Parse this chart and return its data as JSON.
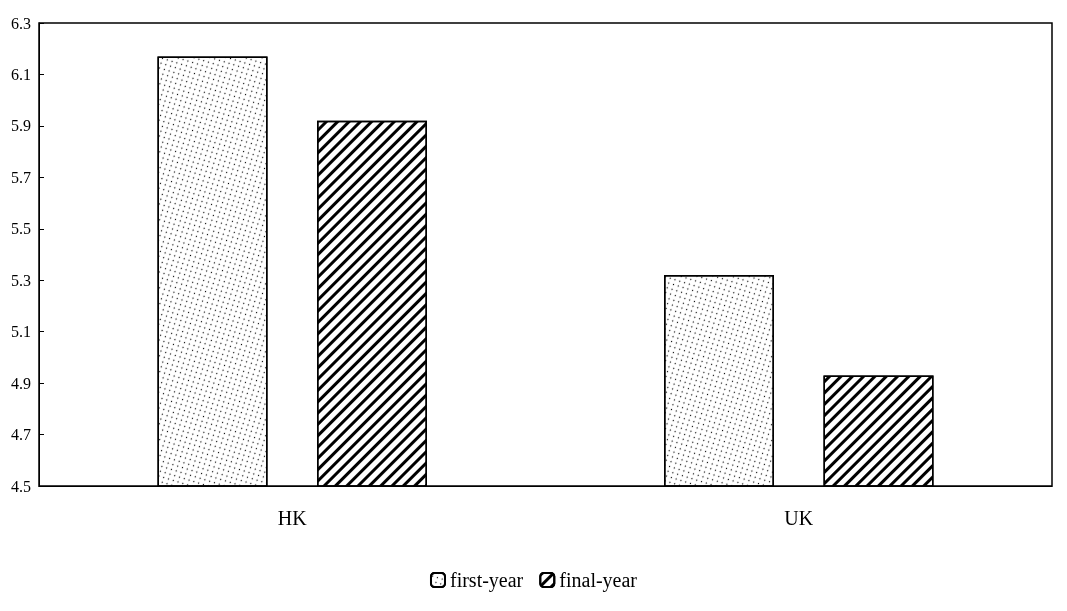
{
  "chart_data": {
    "type": "bar",
    "categories": [
      "HK",
      "UK"
    ],
    "series": [
      {
        "name": "first-year",
        "color": "#ffffff",
        "values": [
          6.17,
          5.32
        ]
      },
      {
        "name": "final-year",
        "color": "#ffffff",
        "values": [
          5.92,
          4.93
        ]
      }
    ],
    "ylim": [
      4.5,
      6.3
    ],
    "yticks": [
      4.5,
      4.7,
      4.9,
      5.1,
      5.3,
      5.5,
      5.7,
      5.9,
      6.1,
      6.3
    ],
    "grid": false,
    "legend": "bottom"
  }
}
